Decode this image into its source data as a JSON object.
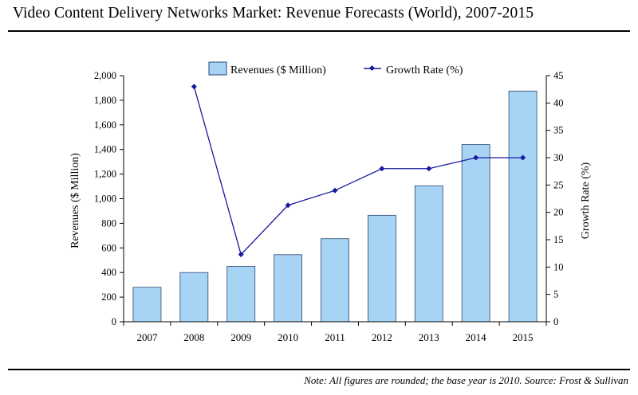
{
  "title": "Video Content Delivery Networks Market: Revenue Forecasts (World), 2007-2015",
  "note": "Note: All figures are rounded; the base year is 2010. Source: Frost & Sullivan",
  "colors": {
    "bar_fill": "#a7d3f5",
    "bar_stroke": "#2a4a73",
    "line": "#1a1aa0"
  },
  "chart_data": {
    "type": "bar",
    "categories": [
      "2007",
      "2008",
      "2009",
      "2010",
      "2011",
      "2012",
      "2013",
      "2014",
      "2015"
    ],
    "series": [
      {
        "name": "Revenues ($ Million)",
        "type": "bar",
        "axis": "left",
        "values": [
          280,
          400,
          450,
          545,
          675,
          865,
          1105,
          1440,
          1875
        ]
      },
      {
        "name": "Growth Rate (%)",
        "type": "line",
        "axis": "right",
        "values": [
          null,
          43,
          12.3,
          21.3,
          24,
          28,
          28,
          30,
          30
        ]
      }
    ],
    "ylabel": "Revenues ($ Million)",
    "y2label": "Growth Rate (%)",
    "ylim": [
      0,
      2000
    ],
    "y2lim": [
      0,
      45
    ],
    "yticks": [
      "0",
      "200",
      "400",
      "600",
      "800",
      "1,000",
      "1,200",
      "1,400",
      "1,600",
      "1,800",
      "2,000"
    ],
    "y2ticks": [
      "0",
      "5",
      "10",
      "15",
      "20",
      "25",
      "30",
      "35",
      "40",
      "45"
    ],
    "legend": "top-center",
    "grid": false
  }
}
